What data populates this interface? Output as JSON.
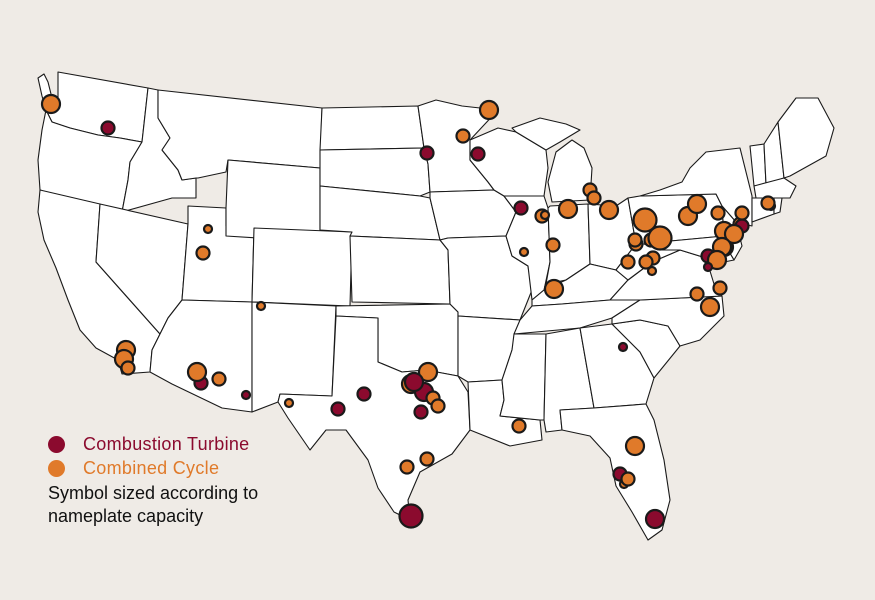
{
  "legend": {
    "ct_label": "Combustion Turbine",
    "cc_label": "Combined Cycle",
    "note": "Symbol sized according to nameplate capacity"
  },
  "colors": {
    "combustion_turbine": "#8b0a2e",
    "combined_cycle": "#e07a2a",
    "state_fill": "#ffffff",
    "border": "#1a1a1a",
    "background": "#efebe6"
  },
  "plants": [
    {
      "location": "Washington, Puget Sound",
      "type": "combined_cycle",
      "size": "medium"
    },
    {
      "location": "Oregon",
      "type": "combustion_turbine",
      "size": "small"
    },
    {
      "location": "Minnesota, Twin Cities",
      "type": "combined_cycle",
      "size": "medium"
    },
    {
      "location": "Wisconsin",
      "type": "combined_cycle",
      "size": "small"
    },
    {
      "location": "South Dakota",
      "type": "combustion_turbine",
      "size": "small"
    },
    {
      "location": "Minnesota",
      "type": "combustion_turbine",
      "size": "small"
    },
    {
      "location": "Illinois, Chicago",
      "type": "combustion_turbine",
      "size": "small"
    },
    {
      "location": "Illinois",
      "type": "combined_cycle",
      "size": "small"
    },
    {
      "location": "Illinois",
      "type": "combined_cycle",
      "size": "small"
    },
    {
      "location": "Illinois",
      "type": "combined_cycle",
      "size": "tiny"
    },
    {
      "location": "Illinois",
      "type": "combined_cycle",
      "size": "tiny"
    },
    {
      "location": "Michigan",
      "type": "combined_cycle",
      "size": "small"
    },
    {
      "location": "Michigan",
      "type": "combined_cycle",
      "size": "small"
    },
    {
      "location": "Indiana",
      "type": "combined_cycle",
      "size": "medium"
    },
    {
      "location": "Indiana",
      "type": "combined_cycle",
      "size": "small"
    },
    {
      "location": "Ohio",
      "type": "combined_cycle",
      "size": "medium"
    },
    {
      "location": "Kentucky",
      "type": "combined_cycle",
      "size": "medium"
    },
    {
      "location": "Pennsylvania",
      "type": "combined_cycle",
      "size": "large"
    },
    {
      "location": "Pennsylvania",
      "type": "combined_cycle",
      "size": "medium"
    },
    {
      "location": "Pennsylvania",
      "type": "combined_cycle",
      "size": "medium"
    },
    {
      "location": "Pennsylvania",
      "type": "combined_cycle",
      "size": "small"
    },
    {
      "location": "Pennsylvania",
      "type": "combined_cycle",
      "size": "small"
    },
    {
      "location": "Pennsylvania",
      "type": "combined_cycle",
      "size": "small"
    },
    {
      "location": "Pennsylvania",
      "type": "combined_cycle",
      "size": "small"
    },
    {
      "location": "Pennsylvania",
      "type": "combined_cycle",
      "size": "small"
    },
    {
      "location": "Ohio",
      "type": "combined_cycle",
      "size": "small"
    },
    {
      "location": "West Virginia",
      "type": "combined_cycle",
      "size": "small"
    },
    {
      "location": "West Virginia",
      "type": "combined_cycle",
      "size": "tiny"
    },
    {
      "location": "Pennsylvania",
      "type": "combined_cycle",
      "size": "large"
    },
    {
      "location": "Pennsylvania",
      "type": "combined_cycle",
      "size": "medium"
    },
    {
      "location": "New York",
      "type": "combined_cycle",
      "size": "small"
    },
    {
      "location": "New York",
      "type": "combustion_turbine",
      "size": "small"
    },
    {
      "location": "New Jersey",
      "type": "combined_cycle",
      "size": "medium"
    },
    {
      "location": "New Jersey",
      "type": "combustion_turbine",
      "size": "small"
    },
    {
      "location": "New Jersey",
      "type": "combined_cycle",
      "size": "medium"
    },
    {
      "location": "New Jersey",
      "type": "combined_cycle",
      "size": "medium"
    },
    {
      "location": "Maryland",
      "type": "combined_cycle",
      "size": "medium"
    },
    {
      "location": "Maryland",
      "type": "combined_cycle",
      "size": "small"
    },
    {
      "location": "Delaware",
      "type": "combined_cycle",
      "size": "small"
    },
    {
      "location": "Virginia",
      "type": "combustion_turbine",
      "size": "small"
    },
    {
      "location": "Virginia",
      "type": "combined_cycle",
      "size": "small"
    },
    {
      "location": "Virginia",
      "type": "combustion_turbine",
      "size": "tiny"
    },
    {
      "location": "Virginia",
      "type": "combustion_turbine",
      "size": "tiny"
    },
    {
      "location": "Massachusetts",
      "type": "combined_cycle",
      "size": "small"
    },
    {
      "location": "Rhode Island",
      "type": "combined_cycle",
      "size": "small"
    },
    {
      "location": "Connecticut",
      "type": "combined_cycle",
      "size": "medium"
    },
    {
      "location": "North Carolina",
      "type": "combustion_turbine",
      "size": "tiny"
    },
    {
      "location": "South Carolina",
      "type": "combined_cycle",
      "size": "tiny"
    },
    {
      "location": "Utah",
      "type": "combined_cycle",
      "size": "small"
    },
    {
      "location": "Utah",
      "type": "combined_cycle",
      "size": "tiny"
    },
    {
      "location": "New Mexico",
      "type": "combined_cycle",
      "size": "medium"
    },
    {
      "location": "California",
      "type": "combined_cycle",
      "size": "medium"
    },
    {
      "location": "California",
      "type": "combined_cycle",
      "size": "small"
    },
    {
      "location": "California",
      "type": "combustion_turbine",
      "size": "small"
    },
    {
      "location": "Arizona",
      "type": "combined_cycle",
      "size": "medium"
    },
    {
      "location": "Arizona",
      "type": "combined_cycle",
      "size": "small"
    },
    {
      "location": "Arizona",
      "type": "combustion_turbine",
      "size": "tiny"
    },
    {
      "location": "Arizona",
      "type": "combined_cycle",
      "size": "tiny"
    },
    {
      "location": "Texas, El Paso",
      "type": "combustion_turbine",
      "size": "small"
    },
    {
      "location": "Texas",
      "type": "combustion_turbine",
      "size": "small"
    },
    {
      "location": "Texas",
      "type": "combined_cycle",
      "size": "medium"
    },
    {
      "location": "Texas",
      "type": "combined_cycle",
      "size": "medium"
    },
    {
      "location": "Texas, Dallas",
      "type": "combustion_turbine",
      "size": "medium"
    },
    {
      "location": "Texas",
      "type": "combined_cycle",
      "size": "small"
    },
    {
      "location": "Texas",
      "type": "combined_cycle",
      "size": "small"
    },
    {
      "location": "Texas",
      "type": "combustion_turbine",
      "size": "small"
    },
    {
      "location": "Texas",
      "type": "combustion_turbine",
      "size": "medium"
    },
    {
      "location": "Texas",
      "type": "combined_cycle",
      "size": "small"
    },
    {
      "location": "Texas",
      "type": "combined_cycle",
      "size": "small"
    },
    {
      "location": "Texas, Houston",
      "type": "combustion_turbine",
      "size": "large"
    },
    {
      "location": "Texas",
      "type": "combined_cycle",
      "size": "small"
    },
    {
      "location": "Texas, Corpus Christi",
      "type": "combined_cycle",
      "size": "medium"
    },
    {
      "location": "Louisiana",
      "type": "combustion_turbine",
      "size": "small"
    },
    {
      "location": "Florida",
      "type": "combined_cycle",
      "size": "tiny"
    },
    {
      "location": "Florida",
      "type": "combined_cycle",
      "size": "small"
    },
    {
      "location": "Florida, Tampa",
      "type": "combustion_turbine",
      "size": "medium"
    },
    {
      "location": "Florida",
      "type": "combined_cycle",
      "size": "small"
    },
    {
      "location": "Florida",
      "type": "combined_cycle",
      "size": "tiny"
    }
  ]
}
